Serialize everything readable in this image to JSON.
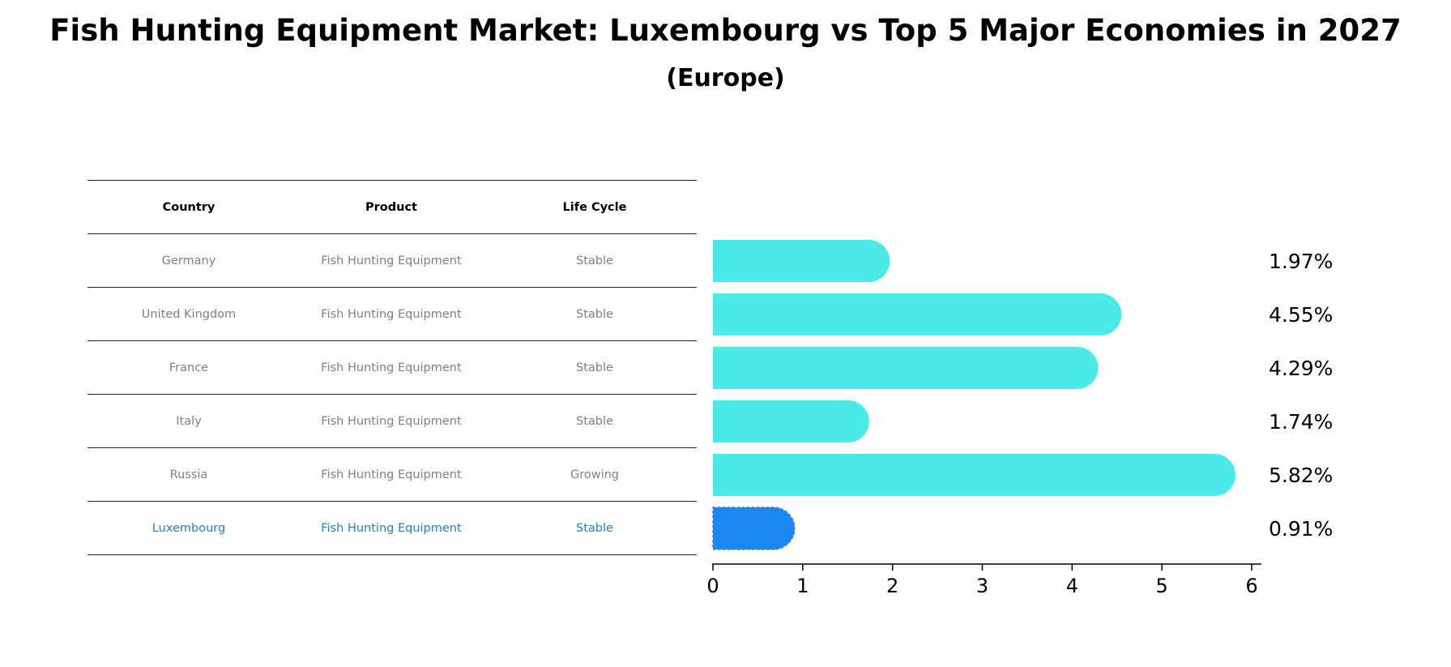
{
  "title": "Fish Hunting Equipment Market: Luxembourg vs Top 5 Major Economies in 2027",
  "subtitle": "(Europe)",
  "table": {
    "headers": [
      "Country",
      "Product",
      "Life Cycle"
    ],
    "rows": [
      {
        "country": "Germany",
        "product": "Fish Hunting Equipment",
        "life_cycle": "Stable"
      },
      {
        "country": "United Kingdom",
        "product": "Fish Hunting Equipment",
        "life_cycle": "Stable"
      },
      {
        "country": "France",
        "product": "Fish Hunting Equipment",
        "life_cycle": "Stable"
      },
      {
        "country": "Italy",
        "product": "Fish Hunting Equipment",
        "life_cycle": "Stable"
      },
      {
        "country": "Russia",
        "product": "Fish Hunting Equipment",
        "life_cycle": "Growing"
      },
      {
        "country": "Luxembourg",
        "product": "Fish Hunting Equipment",
        "life_cycle": "Stable"
      }
    ]
  },
  "chart_data": {
    "type": "bar",
    "orientation": "horizontal",
    "categories": [
      "Germany",
      "United Kingdom",
      "France",
      "Italy",
      "Russia",
      "Luxembourg"
    ],
    "values": [
      1.97,
      4.55,
      4.29,
      1.74,
      5.82,
      0.91
    ],
    "value_labels": [
      "1.97%",
      "4.55%",
      "4.29%",
      "1.74%",
      "5.82%",
      "0.91%"
    ],
    "highlight": "Luxembourg",
    "xlim": [
      0,
      6
    ],
    "xticks": [
      "0",
      "1",
      "2",
      "3",
      "4",
      "5",
      "6"
    ],
    "colors": {
      "bar": "#4aeaea",
      "highlight": "#1a87f2",
      "text": "#000000"
    }
  }
}
